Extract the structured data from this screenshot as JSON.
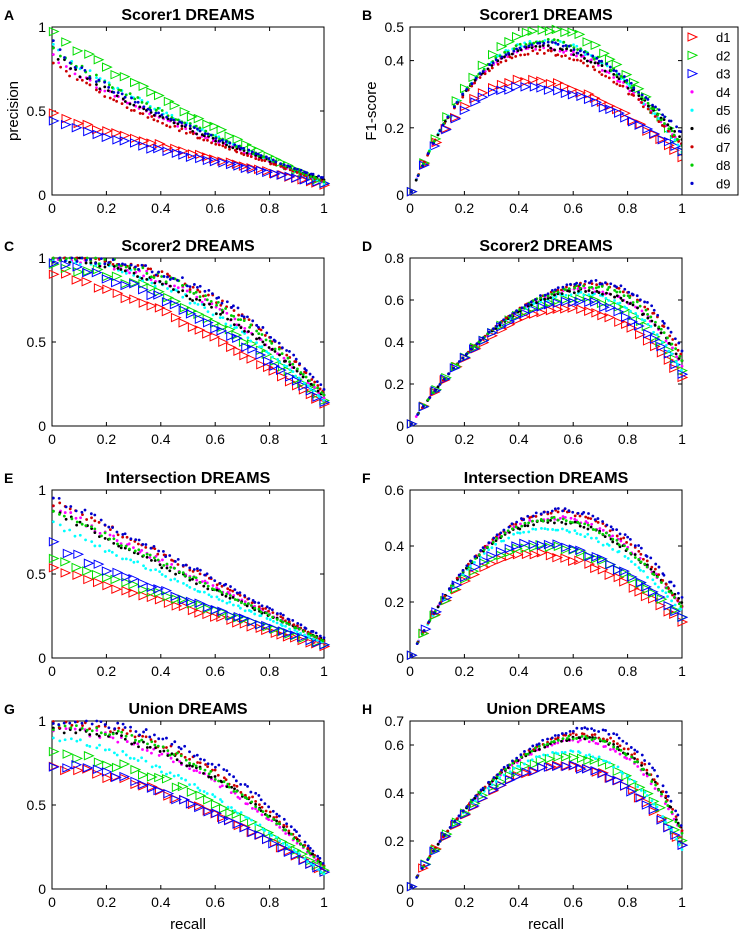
{
  "legend": {
    "entries": [
      {
        "name": "d1",
        "marker": "triangle",
        "color": "#ff0000"
      },
      {
        "name": "d2",
        "marker": "triangle",
        "color": "#00dd00"
      },
      {
        "name": "d3",
        "marker": "triangle",
        "color": "#0000ff"
      },
      {
        "name": "d4",
        "marker": "dot",
        "color": "#ff00ff"
      },
      {
        "name": "d5",
        "marker": "dot",
        "color": "#00ffff"
      },
      {
        "name": "d6",
        "marker": "dot",
        "color": "#000000"
      },
      {
        "name": "d7",
        "marker": "dot",
        "color": "#cc0000"
      },
      {
        "name": "d8",
        "marker": "dot",
        "color": "#00cc00"
      },
      {
        "name": "d9",
        "marker": "dot",
        "color": "#0000cc"
      }
    ],
    "placement": "right of panel B"
  },
  "chart_data": [
    {
      "panel": "A",
      "type": "scatter",
      "title": "Scorer1 DREAMS",
      "xlabel": "",
      "ylabel": "precision",
      "metric": "precision",
      "xlim": [
        0,
        1
      ],
      "ylim": [
        0,
        1
      ],
      "xticks": [
        "0",
        "0.2",
        "0.4",
        "0.6",
        "0.8",
        "1"
      ],
      "yticks": [
        {
          "value": 0,
          "label": "0"
        },
        {
          "value": 0.5,
          "label": "0.5"
        },
        {
          "value": 1,
          "label": "1"
        }
      ],
      "series": [
        {
          "name": "d1",
          "start": 0.48,
          "end": 0.06,
          "shape": 0.9
        },
        {
          "name": "d2",
          "start": 1.0,
          "end": 0.07,
          "shape": 0.85
        },
        {
          "name": "d3",
          "start": 0.45,
          "end": 0.07,
          "shape": 0.8
        },
        {
          "name": "d4",
          "start": 0.85,
          "end": 0.08,
          "shape": 0.75
        },
        {
          "name": "d5",
          "start": 0.9,
          "end": 0.07,
          "shape": 0.8
        },
        {
          "name": "d6",
          "start": 0.88,
          "end": 0.09,
          "shape": 0.7
        },
        {
          "name": "d7",
          "start": 0.82,
          "end": 0.08,
          "shape": 0.72
        },
        {
          "name": "d8",
          "start": 0.9,
          "end": 0.08,
          "shape": 0.78
        },
        {
          "name": "d9",
          "start": 0.95,
          "end": 0.1,
          "shape": 0.65
        }
      ]
    },
    {
      "panel": "B",
      "type": "scatter",
      "title": "Scorer1 DREAMS",
      "xlabel": "",
      "ylabel": "F1-score",
      "metric": "f1",
      "xlim": [
        0,
        1
      ],
      "ylim": [
        0,
        0.5
      ],
      "xticks": [
        "0",
        "0.2",
        "0.4",
        "0.6",
        "0.8",
        "1"
      ],
      "yticks": [
        {
          "value": 0,
          "label": "0"
        },
        {
          "value": 0.2,
          "label": "0.2"
        },
        {
          "value": 0.4,
          "label": "0.4"
        },
        {
          "value": 0.5,
          "label": "0.5"
        }
      ],
      "derived_from": 0
    },
    {
      "panel": "C",
      "type": "scatter",
      "title": "Scorer2 DREAMS",
      "xlabel": "",
      "ylabel": "",
      "metric": "precision",
      "xlim": [
        0,
        1
      ],
      "ylim": [
        0,
        1
      ],
      "xticks": [
        "0",
        "0.2",
        "0.4",
        "0.6",
        "0.8",
        "1"
      ],
      "yticks": [
        {
          "value": 0,
          "label": "0"
        },
        {
          "value": 0.5,
          "label": "0.5"
        },
        {
          "value": 1,
          "label": "1"
        }
      ],
      "series": [
        {
          "name": "d1",
          "start": 0.9,
          "end": 0.13,
          "shape": 1.4
        },
        {
          "name": "d2",
          "start": 0.95,
          "end": 0.15,
          "shape": 1.7
        },
        {
          "name": "d3",
          "start": 0.95,
          "end": 0.14,
          "shape": 1.6
        },
        {
          "name": "d4",
          "start": 1.0,
          "end": 0.17,
          "shape": 2.0
        },
        {
          "name": "d5",
          "start": 1.0,
          "end": 0.15,
          "shape": 1.8
        },
        {
          "name": "d6",
          "start": 1.0,
          "end": 0.18,
          "shape": 1.9
        },
        {
          "name": "d7",
          "start": 1.0,
          "end": 0.2,
          "shape": 2.3
        },
        {
          "name": "d8",
          "start": 1.0,
          "end": 0.18,
          "shape": 2.2
        },
        {
          "name": "d9",
          "start": 1.0,
          "end": 0.22,
          "shape": 2.4
        }
      ]
    },
    {
      "panel": "D",
      "type": "scatter",
      "title": "Scorer2 DREAMS",
      "xlabel": "",
      "ylabel": "",
      "metric": "f1",
      "xlim": [
        0,
        1
      ],
      "ylim": [
        0,
        0.8
      ],
      "xticks": [
        "0",
        "0.2",
        "0.4",
        "0.6",
        "0.8",
        "1"
      ],
      "yticks": [
        {
          "value": 0,
          "label": "0"
        },
        {
          "value": 0.2,
          "label": "0.2"
        },
        {
          "value": 0.4,
          "label": "0.4"
        },
        {
          "value": 0.6,
          "label": "0.6"
        },
        {
          "value": 0.8,
          "label": "0.8"
        }
      ],
      "derived_from": 2
    },
    {
      "panel": "E",
      "type": "scatter",
      "title": "Intersection DREAMS",
      "xlabel": "",
      "ylabel": "",
      "metric": "precision",
      "xlim": [
        0,
        1
      ],
      "ylim": [
        0,
        1
      ],
      "xticks": [
        "0",
        "0.2",
        "0.4",
        "0.6",
        "0.8",
        "1"
      ],
      "yticks": [
        {
          "value": 0,
          "label": "0"
        },
        {
          "value": 0.5,
          "label": "0.5"
        },
        {
          "value": 1,
          "label": "1"
        }
      ],
      "series": [
        {
          "name": "d1",
          "start": 0.55,
          "end": 0.07,
          "shape": 0.9
        },
        {
          "name": "d2",
          "start": 0.6,
          "end": 0.08,
          "shape": 0.95
        },
        {
          "name": "d3",
          "start": 0.7,
          "end": 0.08,
          "shape": 0.8
        },
        {
          "name": "d4",
          "start": 0.9,
          "end": 0.1,
          "shape": 1.0
        },
        {
          "name": "d5",
          "start": 0.8,
          "end": 0.09,
          "shape": 0.95
        },
        {
          "name": "d6",
          "start": 0.9,
          "end": 0.11,
          "shape": 0.9
        },
        {
          "name": "d7",
          "start": 0.92,
          "end": 0.1,
          "shape": 1.1
        },
        {
          "name": "d8",
          "start": 0.88,
          "end": 0.1,
          "shape": 1.0
        },
        {
          "name": "d9",
          "start": 0.95,
          "end": 0.12,
          "shape": 1.05
        }
      ]
    },
    {
      "panel": "F",
      "type": "scatter",
      "title": "Intersection DREAMS",
      "xlabel": "",
      "ylabel": "",
      "metric": "f1",
      "xlim": [
        0,
        1
      ],
      "ylim": [
        0,
        0.6
      ],
      "xticks": [
        "0",
        "0.2",
        "0.4",
        "0.6",
        "0.8",
        "1"
      ],
      "yticks": [
        {
          "value": 0,
          "label": "0"
        },
        {
          "value": 0.2,
          "label": "0.2"
        },
        {
          "value": 0.4,
          "label": "0.4"
        },
        {
          "value": 0.6,
          "label": "0.6"
        }
      ],
      "derived_from": 4
    },
    {
      "panel": "G",
      "type": "scatter",
      "title": "Union DREAMS",
      "xlabel": "recall",
      "ylabel": "",
      "metric": "precision",
      "xlim": [
        0,
        1
      ],
      "ylim": [
        0,
        1
      ],
      "xticks": [
        "0",
        "0.2",
        "0.4",
        "0.6",
        "0.8",
        "1"
      ],
      "yticks": [
        {
          "value": 0,
          "label": "0"
        },
        {
          "value": 0.5,
          "label": "0.5"
        },
        {
          "value": 1,
          "label": "1"
        }
      ],
      "series": [
        {
          "name": "d1",
          "start": 0.72,
          "end": 0.1,
          "shape": 1.6
        },
        {
          "name": "d2",
          "start": 0.8,
          "end": 0.11,
          "shape": 1.7
        },
        {
          "name": "d3",
          "start": 0.74,
          "end": 0.1,
          "shape": 1.5
        },
        {
          "name": "d4",
          "start": 0.95,
          "end": 0.13,
          "shape": 1.9
        },
        {
          "name": "d5",
          "start": 0.9,
          "end": 0.09,
          "shape": 1.6
        },
        {
          "name": "d6",
          "start": 0.95,
          "end": 0.14,
          "shape": 2.0
        },
        {
          "name": "d7",
          "start": 0.98,
          "end": 0.14,
          "shape": 2.1
        },
        {
          "name": "d8",
          "start": 0.97,
          "end": 0.13,
          "shape": 2.0
        },
        {
          "name": "d9",
          "start": 1.0,
          "end": 0.15,
          "shape": 2.3
        }
      ]
    },
    {
      "panel": "H",
      "type": "scatter",
      "title": "Union DREAMS",
      "xlabel": "recall",
      "ylabel": "",
      "metric": "f1",
      "xlim": [
        0,
        1
      ],
      "ylim": [
        0,
        0.7
      ],
      "xticks": [
        "0",
        "0.2",
        "0.4",
        "0.6",
        "0.8",
        "1"
      ],
      "yticks": [
        {
          "value": 0,
          "label": "0"
        },
        {
          "value": 0.2,
          "label": "0.2"
        },
        {
          "value": 0.4,
          "label": "0.4"
        },
        {
          "value": 0.6,
          "label": "0.6"
        },
        {
          "value": 0.7,
          "label": "0.7"
        }
      ],
      "derived_from": 6
    }
  ]
}
